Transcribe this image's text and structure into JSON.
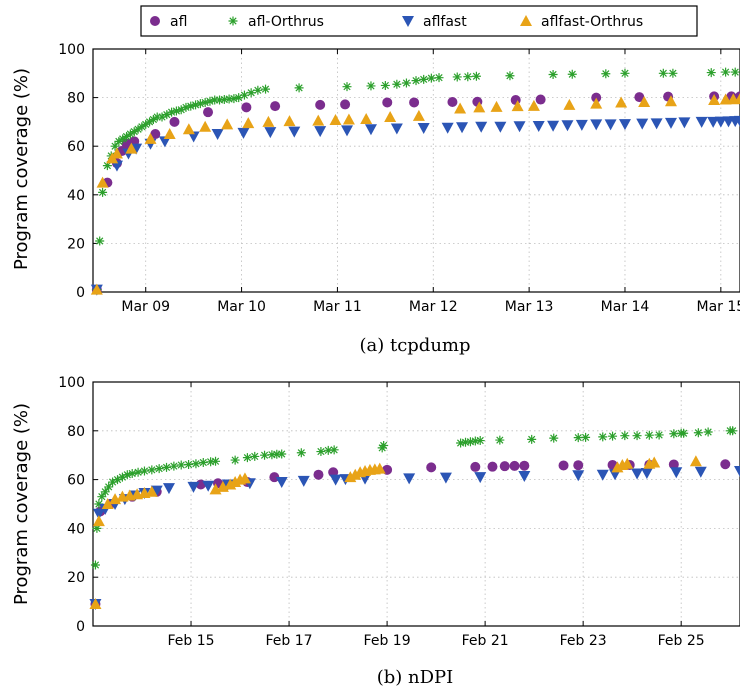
{
  "legend": [
    {
      "name": "afl",
      "marker": "circle",
      "color": "#7b2d8e"
    },
    {
      "name": "afl-Orthrus",
      "marker": "star",
      "color": "#2ca02c"
    },
    {
      "name": "aflfast",
      "marker": "triangle-down",
      "color": "#2b55b5"
    },
    {
      "name": "aflfast-Orthrus",
      "marker": "triangle-up",
      "color": "#e8a317"
    }
  ],
  "chart_data": [
    {
      "type": "scatter",
      "caption": "(a) tcpdump",
      "ylabel": "Program coverage (%)",
      "xlabel": "",
      "x_unit": "days",
      "xlim": [
        8.45,
        15.2
      ],
      "ylim": [
        0,
        100
      ],
      "yticks": [
        0,
        20,
        40,
        60,
        80,
        100
      ],
      "xticks": [
        {
          "x": 9,
          "label": "Mar 09"
        },
        {
          "x": 10,
          "label": "Mar 10"
        },
        {
          "x": 11,
          "label": "Mar 11"
        },
        {
          "x": 12,
          "label": "Mar 12"
        },
        {
          "x": 13,
          "label": "Mar 13"
        },
        {
          "x": 14,
          "label": "Mar 14"
        },
        {
          "x": 15,
          "label": "Mar 15"
        }
      ],
      "grid": true,
      "series": [
        {
          "name": "afl",
          "x": [
            8.49,
            8.6,
            8.7,
            8.75,
            8.8,
            8.88,
            9.1,
            9.3,
            9.65,
            10.05,
            10.35,
            10.82,
            11.08,
            11.52,
            11.8,
            12.2,
            12.46,
            12.86,
            13.12,
            13.7,
            14.15,
            14.45,
            14.93,
            15.11,
            15.2
          ],
          "y": [
            1,
            45,
            53,
            58,
            61,
            62,
            65,
            70,
            74,
            76,
            76.5,
            77,
            77.2,
            78,
            78,
            78.2,
            78.3,
            79,
            79.2,
            80,
            80.2,
            80.4,
            80.5,
            80.5,
            80.5
          ]
        },
        {
          "name": "afl-Orthrus",
          "x": [
            8.49,
            8.52,
            8.55,
            8.6,
            8.64,
            8.68,
            8.72,
            8.76,
            8.8,
            8.84,
            8.88,
            8.92,
            8.96,
            9.0,
            9.04,
            9.08,
            9.12,
            9.17,
            9.22,
            9.27,
            9.32,
            9.37,
            9.42,
            9.47,
            9.52,
            9.57,
            9.62,
            9.67,
            9.72,
            9.77,
            9.82,
            9.87,
            9.92,
            9.97,
            10.03,
            10.1,
            10.17,
            10.25,
            10.6,
            11.1,
            11.35,
            11.5,
            11.62,
            11.72,
            11.82,
            11.9,
            11.98,
            12.06,
            12.25,
            12.36,
            12.45,
            12.8,
            13.25,
            13.45,
            13.8,
            14.0,
            14.4,
            14.5,
            14.9,
            15.05,
            15.15
          ],
          "y": [
            1,
            21,
            41,
            52,
            56,
            60,
            62,
            63,
            64,
            65,
            66,
            67,
            68,
            69,
            70,
            71,
            72,
            72,
            73,
            74,
            74.5,
            75,
            76,
            76.5,
            77,
            77.5,
            78,
            78.5,
            79,
            79,
            79.2,
            79.4,
            79.6,
            80,
            81,
            82,
            83,
            83.5,
            84,
            84.5,
            84.8,
            85,
            85.5,
            86,
            87,
            87.5,
            88,
            88.2,
            88.5,
            88.6,
            88.8,
            89,
            89.5,
            89.6,
            89.8,
            90,
            90,
            90,
            90.3,
            90.5,
            90.5
          ]
        },
        {
          "name": "aflfast",
          "x": [
            8.49,
            8.7,
            8.82,
            8.9,
            9.05,
            9.2,
            9.5,
            9.75,
            10.02,
            10.3,
            10.55,
            10.82,
            11.1,
            11.35,
            11.62,
            11.9,
            12.15,
            12.3,
            12.5,
            12.7,
            12.9,
            13.1,
            13.25,
            13.4,
            13.55,
            13.7,
            13.85,
            14.0,
            14.18,
            14.33,
            14.48,
            14.62,
            14.8,
            14.92,
            15.0,
            15.08,
            15.15,
            15.2
          ],
          "y": [
            1,
            52,
            57,
            59,
            61,
            62,
            64,
            65,
            65.5,
            65.8,
            66,
            66.2,
            66.5,
            67,
            67.3,
            67.5,
            67.6,
            67.8,
            68,
            68,
            68.2,
            68.3,
            68.4,
            68.6,
            68.8,
            69,
            69,
            69.1,
            69.3,
            69.4,
            69.6,
            69.8,
            70,
            70,
            70.1,
            70.2,
            70.3,
            70.4
          ]
        },
        {
          "name": "aflfast-Orthrus",
          "x": [
            8.49,
            8.55,
            8.65,
            8.7,
            8.85,
            9.05,
            9.25,
            9.45,
            9.62,
            9.85,
            10.07,
            10.28,
            10.5,
            10.8,
            10.98,
            11.12,
            11.3,
            11.55,
            11.85,
            12.28,
            12.48,
            12.66,
            12.88,
            13.05,
            13.42,
            13.7,
            13.96,
            14.2,
            14.48,
            14.93,
            15.05,
            15.13,
            15.2
          ],
          "y": [
            1,
            45,
            55,
            57,
            59,
            63,
            65,
            67,
            68,
            69,
            69.5,
            70,
            70.3,
            70.5,
            70.8,
            71,
            71.2,
            72,
            72.5,
            75.5,
            76,
            76.2,
            76.5,
            76.6,
            77,
            77.5,
            78,
            78.2,
            78.5,
            79,
            79.2,
            79.3,
            79.4
          ]
        }
      ]
    },
    {
      "type": "scatter",
      "caption": "(b) nDPI",
      "ylabel": "Program coverage (%)",
      "xlabel": "",
      "x_unit": "days",
      "xlim": [
        13.0,
        26.2
      ],
      "ylim": [
        0,
        100
      ],
      "yticks": [
        0,
        20,
        40,
        60,
        80,
        100
      ],
      "xticks": [
        {
          "x": 15,
          "label": "Feb 15"
        },
        {
          "x": 17,
          "label": "Feb 17"
        },
        {
          "x": 19,
          "label": "Feb 19"
        },
        {
          "x": 21,
          "label": "Feb 21"
        },
        {
          "x": 23,
          "label": "Feb 23"
        },
        {
          "x": 25,
          "label": "Feb 25"
        }
      ],
      "grid": true,
      "series": [
        {
          "name": "afl",
          "x": [
            13.05,
            13.15,
            13.35,
            13.8,
            14.3,
            15.2,
            15.55,
            16.15,
            16.7,
            17.6,
            17.9,
            19.0,
            19.9,
            20.8,
            21.15,
            21.4,
            21.6,
            21.8,
            22.6,
            22.9,
            23.6,
            23.95,
            24.35,
            24.85,
            25.9
          ],
          "y": [
            9,
            47,
            50,
            53,
            55,
            58,
            58.5,
            59,
            61,
            62,
            63,
            64,
            65,
            65.2,
            65.3,
            65.5,
            65.6,
            65.7,
            65.8,
            65.9,
            66,
            66,
            66.1,
            66.2,
            66.3
          ]
        },
        {
          "name": "afl-Orthrus",
          "x": [
            13.05,
            13.08,
            13.12,
            13.18,
            13.25,
            13.32,
            13.4,
            13.5,
            13.6,
            13.7,
            13.8,
            13.92,
            14.05,
            14.2,
            14.35,
            14.5,
            14.65,
            14.8,
            14.95,
            15.1,
            15.25,
            15.4,
            15.5,
            15.9,
            16.15,
            16.3,
            16.5,
            16.65,
            16.75,
            16.85,
            17.25,
            17.65,
            17.8,
            17.92,
            18.9,
            18.93,
            20.5,
            20.6,
            20.7,
            20.8,
            20.9,
            21.3,
            21.95,
            22.4,
            22.9,
            23.05,
            23.4,
            23.6,
            23.85,
            24.1,
            24.35,
            24.55,
            24.85,
            25.0,
            25.05,
            25.35,
            25.55,
            26.0,
            26.05
          ],
          "y": [
            25,
            40,
            50,
            53,
            55,
            57,
            59,
            60,
            61,
            62,
            62.5,
            63,
            63.5,
            64,
            64.5,
            65,
            65.5,
            66,
            66.2,
            66.5,
            67,
            67.3,
            67.5,
            68,
            69,
            69.5,
            70,
            70.2,
            70.4,
            70.5,
            71,
            71.5,
            72,
            72.2,
            73,
            74,
            75,
            75.3,
            75.5,
            75.8,
            76,
            76.2,
            76.5,
            77,
            77.2,
            77.3,
            77.5,
            77.8,
            78,
            78,
            78.2,
            78.3,
            78.8,
            79,
            79,
            79.2,
            79.5,
            80,
            80
          ]
        },
        {
          "name": "aflfast",
          "x": [
            13.05,
            13.12,
            13.25,
            13.45,
            13.65,
            13.85,
            14.05,
            14.3,
            14.55,
            15.05,
            15.35,
            15.75,
            16.2,
            16.85,
            17.3,
            17.95,
            18.15,
            18.55,
            19.45,
            20.2,
            20.9,
            21.8,
            22.9,
            23.4,
            23.65,
            24.1,
            24.3,
            24.9,
            25.4,
            26.2
          ],
          "y": [
            9,
            46,
            48,
            50,
            52,
            53.5,
            54.5,
            55.5,
            56.5,
            57,
            57.5,
            58,
            58.5,
            59,
            59.5,
            60,
            60.2,
            60.4,
            60.5,
            60.8,
            61,
            61.5,
            61.8,
            62,
            62.2,
            62.5,
            62.7,
            63,
            63.2,
            63.5
          ]
        },
        {
          "name": "aflfast-Orthrus",
          "x": [
            13.05,
            13.12,
            13.3,
            13.45,
            13.6,
            13.75,
            13.9,
            14.05,
            14.2,
            15.5,
            15.65,
            15.8,
            15.9,
            16.0,
            16.1,
            18.25,
            18.35,
            18.45,
            18.55,
            18.65,
            18.75,
            18.85,
            23.7,
            23.8,
            23.9,
            24.35,
            24.45,
            25.3
          ],
          "y": [
            9,
            43,
            50,
            52,
            53,
            53.5,
            54,
            54.5,
            55,
            56,
            57,
            58,
            59,
            60,
            60.5,
            61,
            62,
            63,
            63.5,
            64,
            64.2,
            64.5,
            65,
            66,
            66.5,
            66.5,
            67,
            67.5
          ]
        }
      ]
    }
  ]
}
